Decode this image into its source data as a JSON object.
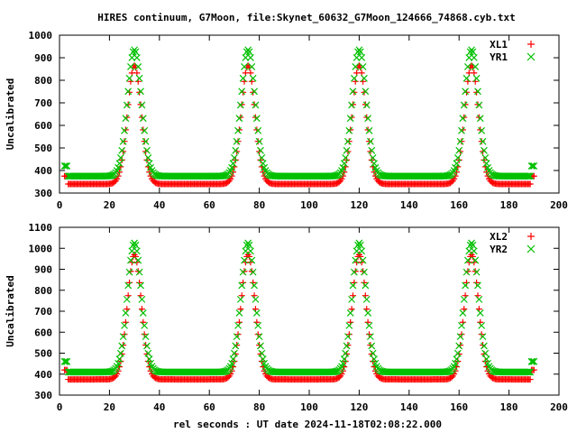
{
  "chart_data": {
    "title": "HIRES continuum, G7Moon, file:Skynet_60632_G7Moon_124666_74868.cyb.txt",
    "xlabel": "rel seconds : UT date 2024-11-18T02:08:22.000",
    "panels": [
      {
        "type": "scatter",
        "ylabel": "Uncalibrated",
        "xlim": [
          0,
          200
        ],
        "ylim": [
          300,
          1000
        ],
        "xticks": [
          "0",
          "20",
          "40",
          "60",
          "80",
          "100",
          "120",
          "140",
          "160",
          "180",
          "200"
        ],
        "yticks": [
          "300",
          "400",
          "500",
          "600",
          "700",
          "800",
          "900",
          "1000"
        ],
        "legend_position": "top-right",
        "series": [
          {
            "name": "XL1",
            "marker": "plus",
            "color": "#ff0000",
            "baseline": 340,
            "peak": 865,
            "edge_value": 375
          },
          {
            "name": "YR1",
            "marker": "cross",
            "color": "#00c000",
            "baseline": 375,
            "peak": 935,
            "edge_value": 420
          }
        ]
      },
      {
        "type": "scatter",
        "ylabel": "Uncalibrated",
        "xlim": [
          0,
          200
        ],
        "ylim": [
          300,
          1100
        ],
        "xticks": [
          "0",
          "20",
          "40",
          "60",
          "80",
          "100",
          "120",
          "140",
          "160",
          "180",
          "200"
        ],
        "yticks": [
          "300",
          "400",
          "500",
          "600",
          "700",
          "800",
          "900",
          "1000",
          "1100"
        ],
        "legend_position": "top-right",
        "series": [
          {
            "name": "XL2",
            "marker": "plus",
            "color": "#ff0000",
            "baseline": 375,
            "peak": 970,
            "edge_value": 420
          },
          {
            "name": "YR2",
            "marker": "cross",
            "color": "#00c000",
            "baseline": 410,
            "peak": 1025,
            "edge_value": 460
          }
        ]
      }
    ],
    "x_start": 2,
    "x_end": 190,
    "x_step": 0.5,
    "peak_centers": [
      30,
      75.5,
      120,
      165
    ],
    "peak_width": 2.8
  }
}
